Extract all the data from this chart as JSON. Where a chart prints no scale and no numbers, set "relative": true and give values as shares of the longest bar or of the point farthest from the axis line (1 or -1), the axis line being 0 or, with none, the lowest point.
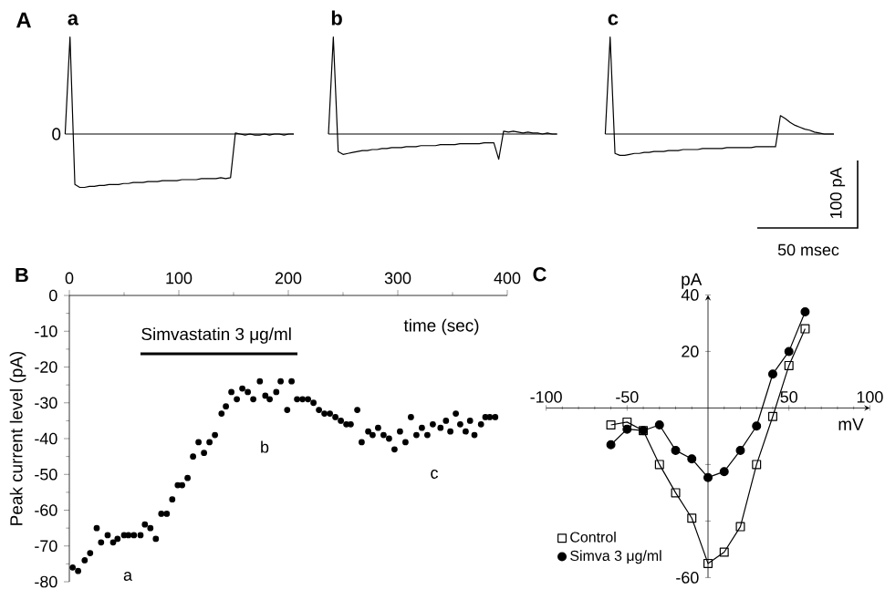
{
  "chart_data": [
    {
      "type": "line",
      "relative": true,
      "title": "a",
      "annotations": [
        "A",
        {
          "text": "0",
          "y": 0
        }
      ],
      "categories": [
        null,
        null,
        null,
        null,
        null,
        null,
        null,
        null,
        null,
        null,
        null,
        null,
        null,
        null,
        null,
        null,
        null,
        null,
        null,
        null,
        null,
        null,
        null,
        null,
        null,
        null,
        null,
        null,
        null,
        null,
        null,
        null,
        null,
        null,
        null,
        null,
        null,
        null,
        null,
        null,
        null,
        null,
        null,
        null,
        null,
        null,
        null,
        null
      ],
      "series": [
        {
          "color": "#000000",
          "values": [
            0,
            1.0,
            -0.52,
            -0.55,
            -0.55,
            -0.54,
            -0.54,
            -0.53,
            -0.53,
            -0.52,
            -0.52,
            -0.52,
            -0.51,
            -0.51,
            -0.5,
            -0.5,
            -0.5,
            -0.49,
            -0.49,
            -0.49,
            -0.48,
            -0.48,
            -0.48,
            -0.48,
            -0.47,
            -0.47,
            -0.47,
            -0.47,
            -0.46,
            -0.46,
            -0.46,
            -0.46,
            -0.45,
            -0.46,
            -0.45,
            0.01,
            0.0,
            -0.01,
            0.0,
            -0.01,
            -0.01,
            0.0,
            -0.01,
            0.0,
            0.0,
            -0.01,
            0.0,
            0.0
          ]
        }
      ]
    },
    {
      "type": "line",
      "relative": true,
      "title": "b",
      "categories": [
        null,
        null,
        null,
        null,
        null,
        null,
        null,
        null,
        null,
        null,
        null,
        null,
        null,
        null,
        null,
        null,
        null,
        null,
        null,
        null,
        null,
        null,
        null,
        null,
        null,
        null,
        null,
        null,
        null,
        null,
        null,
        null,
        null,
        null,
        null,
        null,
        null,
        null,
        null,
        null,
        null,
        null,
        null,
        null,
        null,
        null,
        null,
        null
      ],
      "series": [
        {
          "color": "#000000",
          "values": [
            0,
            1.0,
            -0.18,
            -0.21,
            -0.2,
            -0.19,
            -0.18,
            -0.17,
            -0.17,
            -0.16,
            -0.16,
            -0.15,
            -0.15,
            -0.14,
            -0.14,
            -0.14,
            -0.13,
            -0.13,
            -0.13,
            -0.12,
            -0.12,
            -0.12,
            -0.12,
            -0.11,
            -0.11,
            -0.11,
            -0.11,
            -0.1,
            -0.1,
            -0.1,
            -0.1,
            -0.1,
            -0.09,
            -0.09,
            -0.09,
            -0.26,
            0.03,
            0.02,
            0.03,
            0.02,
            0.01,
            0.02,
            0.01,
            0.01,
            0.0,
            0.01,
            0.0,
            0.0
          ]
        }
      ]
    },
    {
      "type": "line",
      "relative": true,
      "title": "c",
      "annotations": [
        "100 pA",
        "50 msec"
      ],
      "categories": [
        null,
        null,
        null,
        null,
        null,
        null,
        null,
        null,
        null,
        null,
        null,
        null,
        null,
        null,
        null,
        null,
        null,
        null,
        null,
        null,
        null,
        null,
        null,
        null,
        null,
        null,
        null,
        null,
        null,
        null,
        null,
        null,
        null,
        null,
        null,
        null,
        null,
        null,
        null,
        null,
        null,
        null,
        null,
        null,
        null,
        null,
        null,
        null
      ],
      "series": [
        {
          "color": "#000000",
          "values": [
            0,
            1.0,
            -0.2,
            -0.22,
            -0.22,
            -0.21,
            -0.2,
            -0.2,
            -0.19,
            -0.19,
            -0.18,
            -0.18,
            -0.18,
            -0.17,
            -0.17,
            -0.17,
            -0.16,
            -0.16,
            -0.16,
            -0.16,
            -0.15,
            -0.15,
            -0.15,
            -0.15,
            -0.15,
            -0.14,
            -0.14,
            -0.14,
            -0.14,
            -0.14,
            -0.14,
            -0.13,
            -0.13,
            -0.13,
            -0.13,
            -0.13,
            0.19,
            0.16,
            0.12,
            0.09,
            0.07,
            0.05,
            0.04,
            0.02,
            0.01,
            0.0,
            0.0,
            0.0
          ]
        }
      ]
    },
    {
      "type": "scatter",
      "title": "B",
      "xlabel": "time (sec)",
      "ylabel": "Peak current level (pA)",
      "xlim": [
        0,
        400
      ],
      "ylim": [
        -80,
        0
      ],
      "xticks": [
        0,
        100,
        200,
        300,
        400
      ],
      "yticks": [
        0,
        -10,
        -20,
        -30,
        -40,
        -50,
        -60,
        -70,
        -80
      ],
      "annotations": [
        "Simvastatin 3 μg/ml",
        "a",
        "b",
        "c"
      ],
      "x": [
        3,
        8,
        14,
        19,
        25,
        29,
        35,
        40,
        44,
        50,
        54,
        59,
        65,
        69,
        74,
        79,
        84,
        89,
        94,
        99,
        103,
        108,
        113,
        118,
        123,
        128,
        133,
        139,
        143,
        148,
        153,
        158,
        163,
        168,
        174,
        179,
        183,
        189,
        193,
        199,
        203,
        208,
        213,
        218,
        223,
        228,
        233,
        238,
        243,
        248,
        253,
        257,
        263,
        267,
        273,
        277,
        282,
        287,
        292,
        297,
        302,
        307,
        312,
        317,
        322,
        327,
        332,
        339,
        344,
        348,
        353,
        357,
        362,
        366,
        370,
        376,
        380,
        384,
        389
      ],
      "series": [
        {
          "color": "#000000",
          "marker": "circle",
          "values": [
            -76,
            -77,
            -74,
            -72,
            -65,
            -69,
            -67,
            -69,
            -68,
            -67,
            -67,
            -67,
            -67,
            -64,
            -65,
            -68,
            -61,
            -61,
            -57,
            -53,
            -53,
            -51,
            -45,
            -41,
            -44,
            -41,
            -39,
            -33,
            -31,
            -27,
            -29,
            -26,
            -27,
            -29,
            -24,
            -28,
            -29,
            -27,
            -24,
            -32,
            -24,
            -29,
            -29,
            -29,
            -30,
            -32,
            -33,
            -33,
            -34,
            -35,
            -36,
            -36,
            -32,
            -41,
            -38,
            -39,
            -37,
            -39,
            -40,
            -43,
            -38,
            -41,
            -34,
            -39,
            -37,
            -39,
            -36,
            -37,
            -35,
            -38,
            -33,
            -36,
            -38,
            -35,
            -39,
            -36,
            -34,
            -34,
            -34
          ]
        }
      ]
    },
    {
      "type": "line",
      "title": "C",
      "xlabel": "mV",
      "ylabel": "pA",
      "legend": "bottom left",
      "xlim": [
        -100,
        100
      ],
      "ylim": [
        -60,
        40
      ],
      "xticks": [
        -100,
        -50,
        {
          "value": 0,
          "label": null
        },
        50,
        100
      ],
      "yticks": [
        40,
        20,
        {
          "value": 0,
          "label": null
        },
        {
          "value": -20,
          "label": null
        },
        {
          "value": -40,
          "label": null
        },
        -60
      ],
      "x": [
        -60,
        -50,
        -40,
        -30,
        -20,
        -10,
        0,
        10,
        20,
        30,
        40,
        50,
        60
      ],
      "series": [
        {
          "name": "Control",
          "color": "#000000",
          "marker": "square",
          "values": [
            -6,
            -5,
            -8,
            -20,
            -30,
            -39,
            -55,
            -51,
            -42,
            -20,
            -3,
            15,
            28
          ]
        },
        {
          "name": "Simva 3 μg/ml",
          "color": "#000000",
          "marker": "circle",
          "values": [
            -13,
            -7.5,
            -8,
            -6,
            -15,
            -18,
            -24.6,
            -22.5,
            -15,
            -6.4,
            12,
            20,
            34
          ]
        }
      ]
    }
  ]
}
